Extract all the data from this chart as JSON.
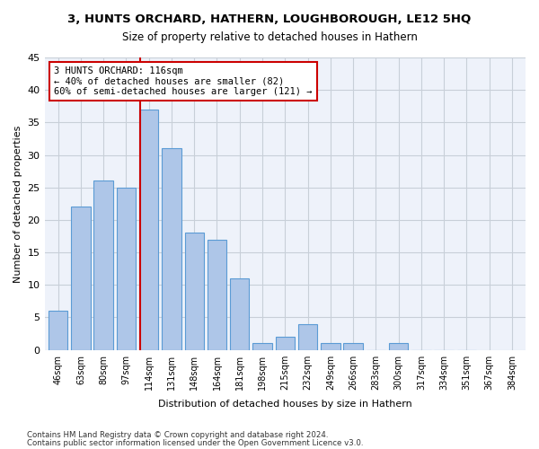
{
  "title": "3, HUNTS ORCHARD, HATHERN, LOUGHBOROUGH, LE12 5HQ",
  "subtitle": "Size of property relative to detached houses in Hathern",
  "xlabel": "Distribution of detached houses by size in Hathern",
  "ylabel": "Number of detached properties",
  "bar_values": [
    6,
    22,
    26,
    25,
    37,
    31,
    18,
    17,
    11,
    1,
    2,
    4,
    1,
    1,
    0,
    1,
    0,
    0,
    0
  ],
  "categories": [
    "46sqm",
    "63sqm",
    "80sqm",
    "97sqm",
    "114sqm",
    "131sqm",
    "148sqm",
    "164sqm",
    "181sqm",
    "198sqm",
    "215sqm",
    "232sqm",
    "249sqm",
    "266sqm",
    "283sqm",
    "300sqm",
    "317sqm",
    "334sqm",
    "351sqm",
    "367sqm",
    "384sqm"
  ],
  "bar_color": "#aec6e8",
  "bar_edge_color": "#5b9bd5",
  "annotation_text": "3 HUNTS ORCHARD: 116sqm\n← 40% of detached houses are smaller (82)\n60% of semi-detached houses are larger (121) →",
  "annotation_box_color": "#ffffff",
  "annotation_box_edge_color": "#cc0000",
  "red_line_color": "#cc0000",
  "ylim": [
    0,
    45
  ],
  "yticks": [
    0,
    5,
    10,
    15,
    20,
    25,
    30,
    35,
    40,
    45
  ],
  "footer_line1": "Contains HM Land Registry data © Crown copyright and database right 2024.",
  "footer_line2": "Contains public sector information licensed under the Open Government Licence v3.0.",
  "background_color": "#ffffff",
  "axes_background_color": "#eef2fa",
  "grid_color": "#c8cfd8"
}
